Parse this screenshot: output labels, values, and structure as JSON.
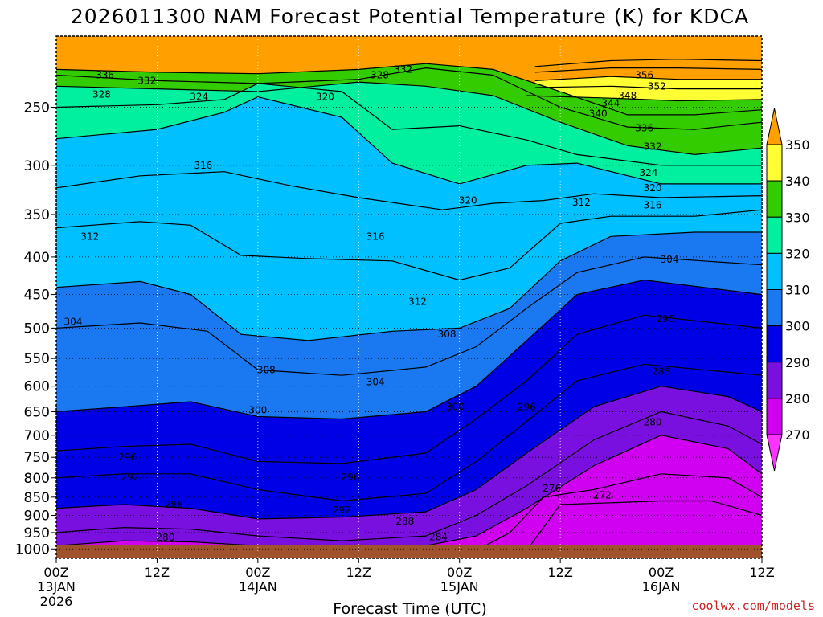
{
  "colors": {
    "ground": "#a0522d",
    "credit": "#cc2222"
  },
  "chart_data": {
    "type": "heatmap",
    "title": "2026011300 NAM Forecast Potential Temperature (K) for KDCA",
    "xlabel": "Forecast Time (UTC)",
    "credit": "coolwx.com/models",
    "y_axis": {
      "scale": "log",
      "inverted": true,
      "range": [
        1030,
        200
      ],
      "ticks": [
        250,
        300,
        350,
        400,
        450,
        500,
        550,
        600,
        650,
        700,
        750,
        800,
        850,
        900,
        950,
        1000
      ],
      "tick_labels": [
        "250",
        "300",
        "350",
        "400",
        "450",
        "500",
        "550",
        "600",
        "650",
        "700",
        "750",
        "800",
        "850",
        "900",
        "950",
        "1000"
      ]
    },
    "x_axis": {
      "unit": "hour",
      "range": [
        0,
        84
      ],
      "ticks": [
        {
          "hour": 0,
          "label": "00Z",
          "date": "13JAN",
          "year": "2026"
        },
        {
          "hour": 12,
          "label": "12Z",
          "date": "",
          "year": ""
        },
        {
          "hour": 24,
          "label": "00Z",
          "date": "14JAN",
          "year": ""
        },
        {
          "hour": 36,
          "label": "12Z",
          "date": "",
          "year": ""
        },
        {
          "hour": 48,
          "label": "00Z",
          "date": "15JAN",
          "year": ""
        },
        {
          "hour": 60,
          "label": "12Z",
          "date": "",
          "year": ""
        },
        {
          "hour": 72,
          "label": "00Z",
          "date": "16JAN",
          "year": ""
        },
        {
          "hour": 84,
          "label": "12Z",
          "date": "",
          "year": ""
        }
      ]
    },
    "grid": true,
    "colorbar": {
      "placement": "right",
      "levels": [
        {
          "value": 350,
          "color": "#f0c000"
        },
        {
          "value": 340,
          "color": "#ffff33"
        },
        {
          "value": 330,
          "color": "#33cc00"
        },
        {
          "value": 320,
          "color": "#00f0a0"
        },
        {
          "value": 310,
          "color": "#00c0ff"
        },
        {
          "value": 300,
          "color": "#1a78f0"
        },
        {
          "value": 290,
          "color": "#0000e6"
        },
        {
          "value": 280,
          "color": "#7a10e0"
        },
        {
          "value": 270,
          "color": "#d000f0"
        }
      ],
      "bottom_color": "#ff33ff",
      "top_color": "#ffa000"
    },
    "isotherms": [
      {
        "value": 356,
        "points": [
          [
            57,
            220
          ],
          [
            66,
            216
          ],
          [
            74,
            215
          ],
          [
            84,
            216
          ]
        ]
      },
      {
        "value": 352,
        "points": [
          [
            57,
            224
          ],
          [
            66,
            221
          ],
          [
            74,
            221
          ],
          [
            84,
            222
          ]
        ]
      },
      {
        "value": 348,
        "points": [
          [
            57,
            230
          ],
          [
            66,
            227
          ],
          [
            74,
            229
          ],
          [
            84,
            229
          ]
        ]
      },
      {
        "value": 344,
        "points": [
          [
            57,
            235
          ],
          [
            66,
            234
          ],
          [
            74,
            236
          ],
          [
            84,
            236
          ]
        ]
      },
      {
        "value": 340,
        "points": [
          [
            56,
            241
          ],
          [
            66,
            243
          ],
          [
            74,
            245
          ],
          [
            84,
            244
          ]
        ]
      },
      {
        "value": 336,
        "points": [
          [
            0,
            222
          ],
          [
            12,
            224
          ],
          [
            24,
            225
          ],
          [
            36,
            222
          ],
          [
            44,
            218
          ],
          [
            52,
            222
          ],
          [
            60,
            238
          ],
          [
            68,
            256
          ],
          [
            76,
            256
          ],
          [
            84,
            252
          ]
        ]
      },
      {
        "value": 332,
        "points": [
          [
            0,
            226
          ],
          [
            12,
            230
          ],
          [
            24,
            232
          ],
          [
            36,
            229
          ],
          [
            44,
            221
          ],
          [
            52,
            226
          ],
          [
            60,
            250
          ],
          [
            68,
            266
          ],
          [
            76,
            268
          ],
          [
            84,
            262
          ]
        ]
      },
      {
        "value": 328,
        "points": [
          [
            0,
            234
          ],
          [
            12,
            236
          ],
          [
            24,
            238
          ],
          [
            36,
            231
          ],
          [
            44,
            234
          ],
          [
            52,
            241
          ],
          [
            60,
            262
          ],
          [
            68,
            282
          ],
          [
            76,
            290
          ],
          [
            84,
            284
          ]
        ]
      },
      {
        "value": 324,
        "points": [
          [
            0,
            250
          ],
          [
            12,
            248
          ],
          [
            20,
            244
          ],
          [
            24,
            232
          ],
          [
            34,
            238
          ],
          [
            40,
            268
          ],
          [
            48,
            265
          ],
          [
            56,
            277
          ],
          [
            62,
            290
          ],
          [
            72,
            300
          ],
          [
            84,
            300
          ]
        ]
      },
      {
        "value": 320,
        "points": [
          [
            0,
            276
          ],
          [
            12,
            268
          ],
          [
            20,
            254
          ],
          [
            24,
            242
          ],
          [
            34,
            258
          ],
          [
            40,
            298
          ],
          [
            48,
            318
          ],
          [
            56,
            300
          ],
          [
            62,
            298
          ],
          [
            72,
            318
          ],
          [
            84,
            318
          ]
        ]
      },
      {
        "value": 316,
        "points": [
          [
            0,
            322
          ],
          [
            10,
            310
          ],
          [
            20,
            306
          ],
          [
            28,
            320
          ],
          [
            36,
            332
          ],
          [
            46,
            345
          ],
          [
            52,
            338
          ],
          [
            58,
            335
          ],
          [
            64,
            328
          ],
          [
            72,
            332
          ],
          [
            84,
            330
          ]
        ]
      },
      {
        "value": 312,
        "points": [
          [
            0,
            365
          ],
          [
            10,
            358
          ],
          [
            16,
            362
          ],
          [
            22,
            398
          ],
          [
            30,
            402
          ],
          [
            40,
            405
          ],
          [
            48,
            430
          ],
          [
            54,
            414
          ],
          [
            60,
            360
          ],
          [
            66,
            352
          ],
          [
            76,
            352
          ],
          [
            84,
            345
          ]
        ]
      },
      {
        "value": 308,
        "points": [
          [
            0,
            440
          ],
          [
            10,
            432
          ],
          [
            16,
            450
          ],
          [
            22,
            510
          ],
          [
            30,
            520
          ],
          [
            40,
            505
          ],
          [
            48,
            500
          ],
          [
            54,
            470
          ],
          [
            60,
            405
          ],
          [
            66,
            375
          ],
          [
            76,
            370
          ],
          [
            84,
            370
          ]
        ]
      },
      {
        "value": 304,
        "points": [
          [
            0,
            500
          ],
          [
            10,
            492
          ],
          [
            18,
            505
          ],
          [
            24,
            570
          ],
          [
            34,
            580
          ],
          [
            44,
            565
          ],
          [
            50,
            530
          ],
          [
            56,
            470
          ],
          [
            62,
            420
          ],
          [
            70,
            400
          ],
          [
            84,
            410
          ]
        ]
      },
      {
        "value": 300,
        "points": [
          [
            0,
            650
          ],
          [
            8,
            640
          ],
          [
            16,
            630
          ],
          [
            24,
            660
          ],
          [
            34,
            665
          ],
          [
            44,
            650
          ],
          [
            50,
            600
          ],
          [
            56,
            520
          ],
          [
            62,
            450
          ],
          [
            70,
            430
          ],
          [
            84,
            450
          ]
        ]
      },
      {
        "value": 296,
        "points": [
          [
            0,
            735
          ],
          [
            8,
            725
          ],
          [
            16,
            720
          ],
          [
            24,
            760
          ],
          [
            34,
            765
          ],
          [
            44,
            740
          ],
          [
            50,
            665
          ],
          [
            56,
            590
          ],
          [
            62,
            510
          ],
          [
            70,
            480
          ],
          [
            84,
            500
          ]
        ]
      },
      {
        "value": 292,
        "points": [
          [
            0,
            800
          ],
          [
            8,
            790
          ],
          [
            16,
            790
          ],
          [
            24,
            830
          ],
          [
            34,
            860
          ],
          [
            44,
            840
          ],
          [
            50,
            760
          ],
          [
            56,
            670
          ],
          [
            62,
            590
          ],
          [
            70,
            560
          ],
          [
            84,
            580
          ]
        ]
      },
      {
        "value": 288,
        "points": [
          [
            0,
            880
          ],
          [
            8,
            870
          ],
          [
            16,
            880
          ],
          [
            24,
            910
          ],
          [
            34,
            905
          ],
          [
            44,
            890
          ],
          [
            50,
            830
          ],
          [
            56,
            740
          ],
          [
            64,
            640
          ],
          [
            72,
            600
          ],
          [
            80,
            620
          ],
          [
            84,
            650
          ]
        ]
      },
      {
        "value": 284,
        "points": [
          [
            0,
            950
          ],
          [
            8,
            935
          ],
          [
            16,
            940
          ],
          [
            24,
            960
          ],
          [
            34,
            975
          ],
          [
            44,
            960
          ],
          [
            50,
            900
          ],
          [
            56,
            820
          ],
          [
            64,
            710
          ],
          [
            72,
            650
          ],
          [
            80,
            680
          ],
          [
            84,
            720
          ]
        ]
      },
      {
        "value": 280,
        "points": [
          [
            0,
            990
          ],
          [
            8,
            975
          ],
          [
            16,
            978
          ],
          [
            24,
            990
          ],
          [
            34,
            1000
          ],
          [
            44,
            990
          ],
          [
            50,
            960
          ],
          [
            56,
            880
          ],
          [
            64,
            770
          ],
          [
            72,
            700
          ],
          [
            80,
            730
          ],
          [
            84,
            790
          ]
        ]
      },
      {
        "value": 276,
        "points": [
          [
            50,
            1005
          ],
          [
            54,
            950
          ],
          [
            58,
            850
          ],
          [
            64,
            830
          ],
          [
            72,
            790
          ],
          [
            80,
            800
          ],
          [
            84,
            850
          ]
        ]
      },
      {
        "value": 272,
        "points": [
          [
            56,
            1005
          ],
          [
            60,
            870
          ],
          [
            66,
            865
          ],
          [
            72,
            860
          ],
          [
            78,
            860
          ],
          [
            84,
            900
          ]
        ]
      }
    ],
    "contour_labels": [
      {
        "text": "336",
        "hour": 5.8,
        "p": 226
      },
      {
        "text": "332",
        "hour": 10.8,
        "p": 230
      },
      {
        "text": "328",
        "hour": 5.4,
        "p": 240
      },
      {
        "text": "324",
        "hour": 17,
        "p": 242
      },
      {
        "text": "328",
        "hour": 38.5,
        "p": 226
      },
      {
        "text": "332",
        "hour": 41.3,
        "p": 222
      },
      {
        "text": "320",
        "hour": 32,
        "p": 242
      },
      {
        "text": "356",
        "hour": 70,
        "p": 226
      },
      {
        "text": "352",
        "hour": 71.5,
        "p": 234
      },
      {
        "text": "348",
        "hour": 68,
        "p": 241
      },
      {
        "text": "344",
        "hour": 66,
        "p": 247
      },
      {
        "text": "340",
        "hour": 64.5,
        "p": 255
      },
      {
        "text": "336",
        "hour": 70,
        "p": 267
      },
      {
        "text": "332",
        "hour": 71,
        "p": 283
      },
      {
        "text": "324",
        "hour": 70.5,
        "p": 307
      },
      {
        "text": "320",
        "hour": 71,
        "p": 322
      },
      {
        "text": "316",
        "hour": 71,
        "p": 340
      },
      {
        "text": "316",
        "hour": 17.5,
        "p": 300
      },
      {
        "text": "320",
        "hour": 49,
        "p": 335
      },
      {
        "text": "312",
        "hour": 62.5,
        "p": 337
      },
      {
        "text": "316",
        "hour": 38,
        "p": 375
      },
      {
        "text": "312",
        "hour": 4,
        "p": 375
      },
      {
        "text": "304",
        "hour": 73,
        "p": 403
      },
      {
        "text": "312",
        "hour": 43,
        "p": 460
      },
      {
        "text": "304",
        "hour": 2,
        "p": 490
      },
      {
        "text": "296",
        "hour": 72.5,
        "p": 486
      },
      {
        "text": "308",
        "hour": 46.5,
        "p": 510
      },
      {
        "text": "308",
        "hour": 25,
        "p": 570
      },
      {
        "text": "288",
        "hour": 72,
        "p": 573
      },
      {
        "text": "304",
        "hour": 38,
        "p": 592
      },
      {
        "text": "300",
        "hour": 24,
        "p": 647
      },
      {
        "text": "300",
        "hour": 47.5,
        "p": 640
      },
      {
        "text": "296",
        "hour": 56,
        "p": 640
      },
      {
        "text": "280",
        "hour": 71,
        "p": 672
      },
      {
        "text": "296",
        "hour": 8.5,
        "p": 750
      },
      {
        "text": "292",
        "hour": 8.8,
        "p": 798
      },
      {
        "text": "296",
        "hour": 35,
        "p": 798
      },
      {
        "text": "288",
        "hour": 14,
        "p": 870
      },
      {
        "text": "292",
        "hour": 34,
        "p": 885
      },
      {
        "text": "276",
        "hour": 59,
        "p": 827
      },
      {
        "text": "272",
        "hour": 65,
        "p": 845
      },
      {
        "text": "288",
        "hour": 41.5,
        "p": 917
      },
      {
        "text": "284",
        "hour": 45.5,
        "p": 963
      },
      {
        "text": "280",
        "hour": 13,
        "p": 965
      }
    ]
  }
}
